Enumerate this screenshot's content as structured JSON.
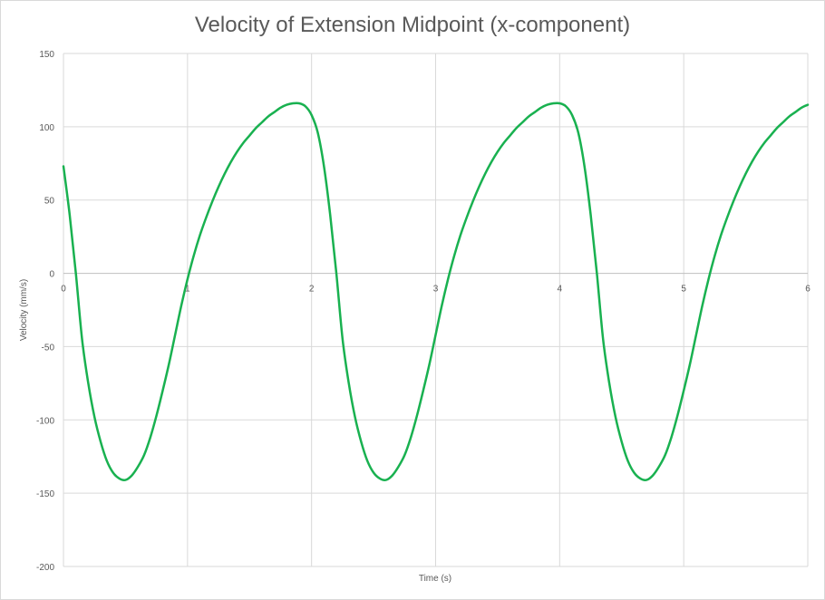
{
  "chart_data": {
    "type": "line",
    "title": "Velocity of Extension Midpoint (x-component)",
    "xlabel": "Time (s)",
    "ylabel": "Velocity (mm/s)",
    "xlim": [
      0,
      6
    ],
    "ylim": [
      -200,
      150
    ],
    "xticks": [
      0,
      1,
      2,
      3,
      4,
      5,
      6
    ],
    "yticks": [
      150,
      100,
      50,
      0,
      -50,
      -100,
      -150,
      -200
    ],
    "grid": true,
    "legend": "none",
    "colors": {
      "series": "#19b150",
      "grid": "#d9d9d9",
      "axis": "#bfbfbf",
      "text": "#595959"
    },
    "series": [
      {
        "x": [
          0,
          0.05,
          0.1,
          0.15,
          0.2,
          0.25,
          0.3,
          0.35,
          0.4,
          0.45,
          0.5,
          0.55,
          0.6,
          0.65,
          0.7,
          0.75,
          0.8,
          0.85,
          0.9,
          0.95,
          1.0,
          1.05,
          1.1,
          1.15,
          1.2,
          1.25,
          1.3,
          1.35,
          1.4,
          1.45,
          1.5,
          1.55,
          1.6,
          1.65,
          1.7,
          1.75,
          1.8,
          1.85,
          1.9,
          1.95,
          2.0,
          2.05,
          2.1,
          2.15,
          2.2,
          2.25,
          2.3,
          2.35,
          2.4,
          2.45,
          2.5,
          2.55,
          2.6,
          2.65,
          2.7,
          2.75,
          2.8,
          2.85,
          2.9,
          2.95,
          3.0,
          3.05,
          3.1,
          3.15,
          3.2,
          3.25,
          3.3,
          3.35,
          3.4,
          3.45,
          3.5,
          3.55,
          3.6,
          3.65,
          3.7,
          3.75,
          3.8,
          3.85,
          3.9,
          3.95,
          4.0,
          4.05,
          4.1,
          4.15,
          4.2,
          4.25,
          4.3,
          4.35,
          4.4,
          4.45,
          4.5,
          4.55,
          4.6,
          4.65,
          4.7,
          4.75,
          4.8,
          4.85,
          4.9,
          4.95,
          5.0,
          5.05,
          5.1,
          5.15,
          5.2,
          5.25,
          5.3,
          5.35,
          5.4,
          5.45,
          5.5,
          5.55,
          5.6,
          5.65,
          5.7,
          5.75,
          5.8,
          5.85,
          5.9,
          5.95,
          6.0
        ],
        "y": [
          73,
          40,
          0,
          -45,
          -75,
          -98,
          -115,
          -128,
          -136,
          -140,
          -141,
          -138,
          -132,
          -124,
          -112,
          -97,
          -80,
          -62,
          -42,
          -22,
          -4,
          12,
          26,
          38,
          49,
          59,
          68,
          76,
          83,
          89,
          94,
          99,
          103,
          107,
          110,
          113,
          115,
          116,
          116,
          114,
          108,
          96,
          73,
          40,
          0,
          -45,
          -75,
          -98,
          -115,
          -128,
          -136,
          -140,
          -141,
          -138,
          -132,
          -124,
          -112,
          -97,
          -80,
          -62,
          -42,
          -22,
          -4,
          12,
          26,
          38,
          49,
          59,
          68,
          76,
          83,
          89,
          94,
          99,
          103,
          107,
          110,
          113,
          115,
          116,
          116,
          114,
          108,
          96,
          73,
          40,
          0,
          -45,
          -75,
          -98,
          -115,
          -128,
          -136,
          -140,
          -141,
          -138,
          -132,
          -124,
          -112,
          -97,
          -80,
          -62,
          -42,
          -22,
          -4,
          12,
          26,
          38,
          49,
          59,
          68,
          76,
          83,
          89,
          94,
          99,
          103,
          107,
          110,
          113,
          115
        ]
      }
    ]
  }
}
